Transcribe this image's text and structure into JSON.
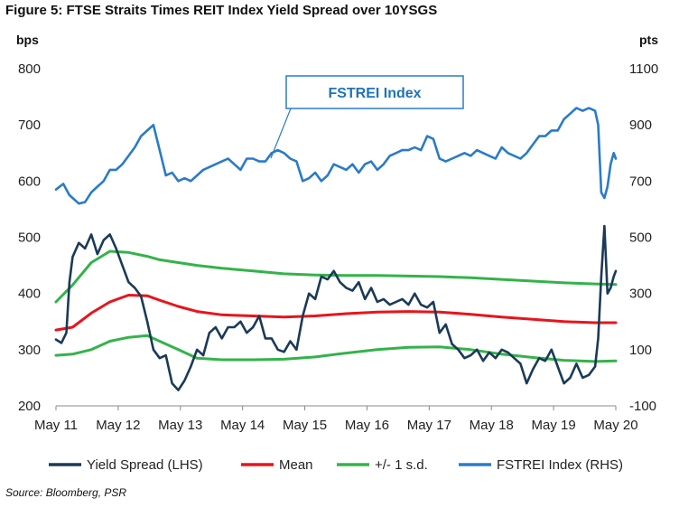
{
  "title": "Figure 5: FTSE Straits Times REIT Index Yield Spread over 10YSGS",
  "unit_left": "bps",
  "unit_right": "pts",
  "source": "Source: Bloomberg, PSR",
  "colors": {
    "yield_spread": "#1b3a57",
    "mean": "#e8141b",
    "sd": "#33b34a",
    "fstrei": "#2a7bc7",
    "axis": "#888888",
    "callout": "#2a7bc7"
  },
  "chart_data": {
    "type": "line",
    "title": "Figure 5: FTSE Straits Times REIT Index Yield Spread over 10YSGS",
    "x_tick_labels": [
      "May 11",
      "May 12",
      "May 13",
      "May 14",
      "May 15",
      "May 16",
      "May 17",
      "May 18",
      "May 19",
      "May 20"
    ],
    "x_domain": [
      2011.333,
      2020.333
    ],
    "y_left": {
      "label": "bps",
      "range": [
        200,
        800
      ],
      "ticks": [
        200,
        300,
        400,
        500,
        600,
        700,
        800
      ]
    },
    "y_right": {
      "label": "pts",
      "range": [
        -100,
        1100
      ],
      "ticks": [
        -100,
        100,
        300,
        500,
        700,
        900,
        1100
      ]
    },
    "grid": false,
    "legend_position": "bottom",
    "annotation": "FSTREI Index",
    "series": [
      {
        "name": "Yield Spread (LHS)",
        "axis": "left",
        "x": [
          2011.333,
          2011.42,
          2011.5,
          2011.55,
          2011.6,
          2011.7,
          2011.8,
          2011.9,
          2012.0,
          2012.1,
          2012.2,
          2012.3,
          2012.4,
          2012.5,
          2012.6,
          2012.7,
          2012.8,
          2012.9,
          2013.0,
          2013.1,
          2013.2,
          2013.3,
          2013.4,
          2013.5,
          2013.6,
          2013.7,
          2013.8,
          2013.9,
          2014.0,
          2014.1,
          2014.2,
          2014.3,
          2014.4,
          2014.5,
          2014.6,
          2014.7,
          2014.8,
          2014.9,
          2015.0,
          2015.1,
          2015.2,
          2015.3,
          2015.4,
          2015.5,
          2015.6,
          2015.7,
          2015.8,
          2015.9,
          2016.0,
          2016.1,
          2016.2,
          2016.3,
          2016.4,
          2016.5,
          2016.6,
          2016.7,
          2016.8,
          2016.9,
          2017.0,
          2017.1,
          2017.2,
          2017.3,
          2017.4,
          2017.5,
          2017.6,
          2017.7,
          2017.8,
          2017.9,
          2018.0,
          2018.1,
          2018.2,
          2018.3,
          2018.4,
          2018.5,
          2018.6,
          2018.7,
          2018.8,
          2018.9,
          2019.0,
          2019.1,
          2019.2,
          2019.3,
          2019.4,
          2019.5,
          2019.6,
          2019.7,
          2019.8,
          2019.9,
          2020.0,
          2020.05,
          2020.1,
          2020.15,
          2020.2,
          2020.25,
          2020.3,
          2020.333
        ],
        "values": [
          318,
          312,
          330,
          420,
          465,
          490,
          480,
          505,
          470,
          495,
          505,
          480,
          450,
          420,
          410,
          395,
          350,
          300,
          285,
          290,
          240,
          228,
          245,
          270,
          300,
          290,
          330,
          340,
          320,
          340,
          340,
          350,
          330,
          340,
          360,
          320,
          320,
          300,
          296,
          315,
          300,
          360,
          400,
          390,
          430,
          425,
          440,
          420,
          410,
          405,
          420,
          390,
          410,
          385,
          390,
          380,
          385,
          390,
          380,
          400,
          380,
          375,
          385,
          330,
          345,
          310,
          300,
          285,
          290,
          300,
          280,
          295,
          285,
          300,
          295,
          285,
          275,
          240,
          265,
          285,
          280,
          300,
          270,
          240,
          250,
          275,
          250,
          255,
          270,
          320,
          430,
          520,
          400,
          410,
          430,
          440
        ]
      },
      {
        "name": "Mean",
        "axis": "left",
        "x": [
          2011.333,
          2011.6,
          2011.9,
          2012.2,
          2012.5,
          2012.8,
          2013.0,
          2013.3,
          2013.6,
          2014.0,
          2014.5,
          2015.0,
          2015.5,
          2016.0,
          2016.5,
          2017.0,
          2017.5,
          2018.0,
          2018.5,
          2019.0,
          2019.5,
          2020.0,
          2020.333
        ],
        "values": [
          335,
          340,
          365,
          385,
          397,
          396,
          388,
          377,
          368,
          362,
          360,
          358,
          360,
          364,
          367,
          368,
          367,
          363,
          358,
          354,
          350,
          348,
          348
        ]
      },
      {
        "name": "+/- 1 s.d.",
        "axis": "left",
        "band": "upper",
        "x": [
          2011.333,
          2011.6,
          2011.9,
          2012.2,
          2012.5,
          2012.8,
          2013.0,
          2013.3,
          2013.6,
          2014.0,
          2014.5,
          2015.0,
          2015.5,
          2016.0,
          2016.5,
          2017.0,
          2017.5,
          2018.0,
          2018.5,
          2019.0,
          2019.5,
          2020.0,
          2020.333
        ],
        "values": [
          385,
          415,
          455,
          475,
          473,
          466,
          460,
          455,
          450,
          445,
          440,
          435,
          433,
          432,
          432,
          431,
          430,
          428,
          425,
          422,
          419,
          417,
          416
        ]
      },
      {
        "name": "+/- 1 s.d.",
        "axis": "left",
        "band": "lower",
        "x": [
          2011.333,
          2011.6,
          2011.9,
          2012.2,
          2012.5,
          2012.8,
          2013.0,
          2013.3,
          2013.6,
          2014.0,
          2014.5,
          2015.0,
          2015.5,
          2016.0,
          2016.5,
          2017.0,
          2017.5,
          2018.0,
          2018.5,
          2019.0,
          2019.5,
          2020.0,
          2020.333
        ],
        "values": [
          290,
          292,
          300,
          315,
          322,
          325,
          315,
          300,
          285,
          282,
          282,
          283,
          287,
          294,
          300,
          304,
          305,
          300,
          292,
          286,
          281,
          279,
          280
        ]
      },
      {
        "name": "FSTREI Index (RHS)",
        "axis": "right",
        "x": [
          2011.333,
          2011.45,
          2011.55,
          2011.7,
          2011.8,
          2011.9,
          2012.0,
          2012.1,
          2012.2,
          2012.3,
          2012.4,
          2012.5,
          2012.6,
          2012.7,
          2012.8,
          2012.9,
          2013.0,
          2013.1,
          2013.2,
          2013.3,
          2013.4,
          2013.5,
          2013.6,
          2013.7,
          2013.8,
          2013.9,
          2014.0,
          2014.1,
          2014.2,
          2014.3,
          2014.4,
          2014.5,
          2014.6,
          2014.7,
          2014.8,
          2014.9,
          2015.0,
          2015.1,
          2015.2,
          2015.3,
          2015.4,
          2015.5,
          2015.6,
          2015.7,
          2015.8,
          2015.9,
          2016.0,
          2016.1,
          2016.2,
          2016.3,
          2016.4,
          2016.5,
          2016.6,
          2016.7,
          2016.8,
          2016.9,
          2017.0,
          2017.1,
          2017.2,
          2017.3,
          2017.4,
          2017.5,
          2017.6,
          2017.7,
          2017.8,
          2017.9,
          2018.0,
          2018.1,
          2018.2,
          2018.3,
          2018.4,
          2018.5,
          2018.6,
          2018.7,
          2018.8,
          2018.9,
          2019.0,
          2019.1,
          2019.2,
          2019.3,
          2019.4,
          2019.5,
          2019.6,
          2019.7,
          2019.8,
          2019.9,
          2020.0,
          2020.05,
          2020.1,
          2020.15,
          2020.2,
          2020.25,
          2020.3,
          2020.333
        ],
        "values": [
          670,
          690,
          650,
          620,
          625,
          660,
          680,
          700,
          740,
          740,
          760,
          790,
          820,
          860,
          880,
          900,
          810,
          720,
          730,
          700,
          710,
          700,
          720,
          740,
          750,
          760,
          770,
          780,
          760,
          740,
          780,
          780,
          770,
          770,
          800,
          810,
          800,
          780,
          770,
          700,
          710,
          730,
          700,
          720,
          760,
          750,
          740,
          760,
          730,
          760,
          770,
          740,
          760,
          790,
          800,
          810,
          810,
          820,
          810,
          860,
          850,
          780,
          770,
          780,
          790,
          800,
          790,
          810,
          800,
          790,
          780,
          820,
          800,
          790,
          780,
          800,
          830,
          860,
          860,
          880,
          880,
          920,
          940,
          960,
          950,
          960,
          950,
          900,
          660,
          640,
          680,
          760,
          800,
          780
        ]
      }
    ]
  }
}
